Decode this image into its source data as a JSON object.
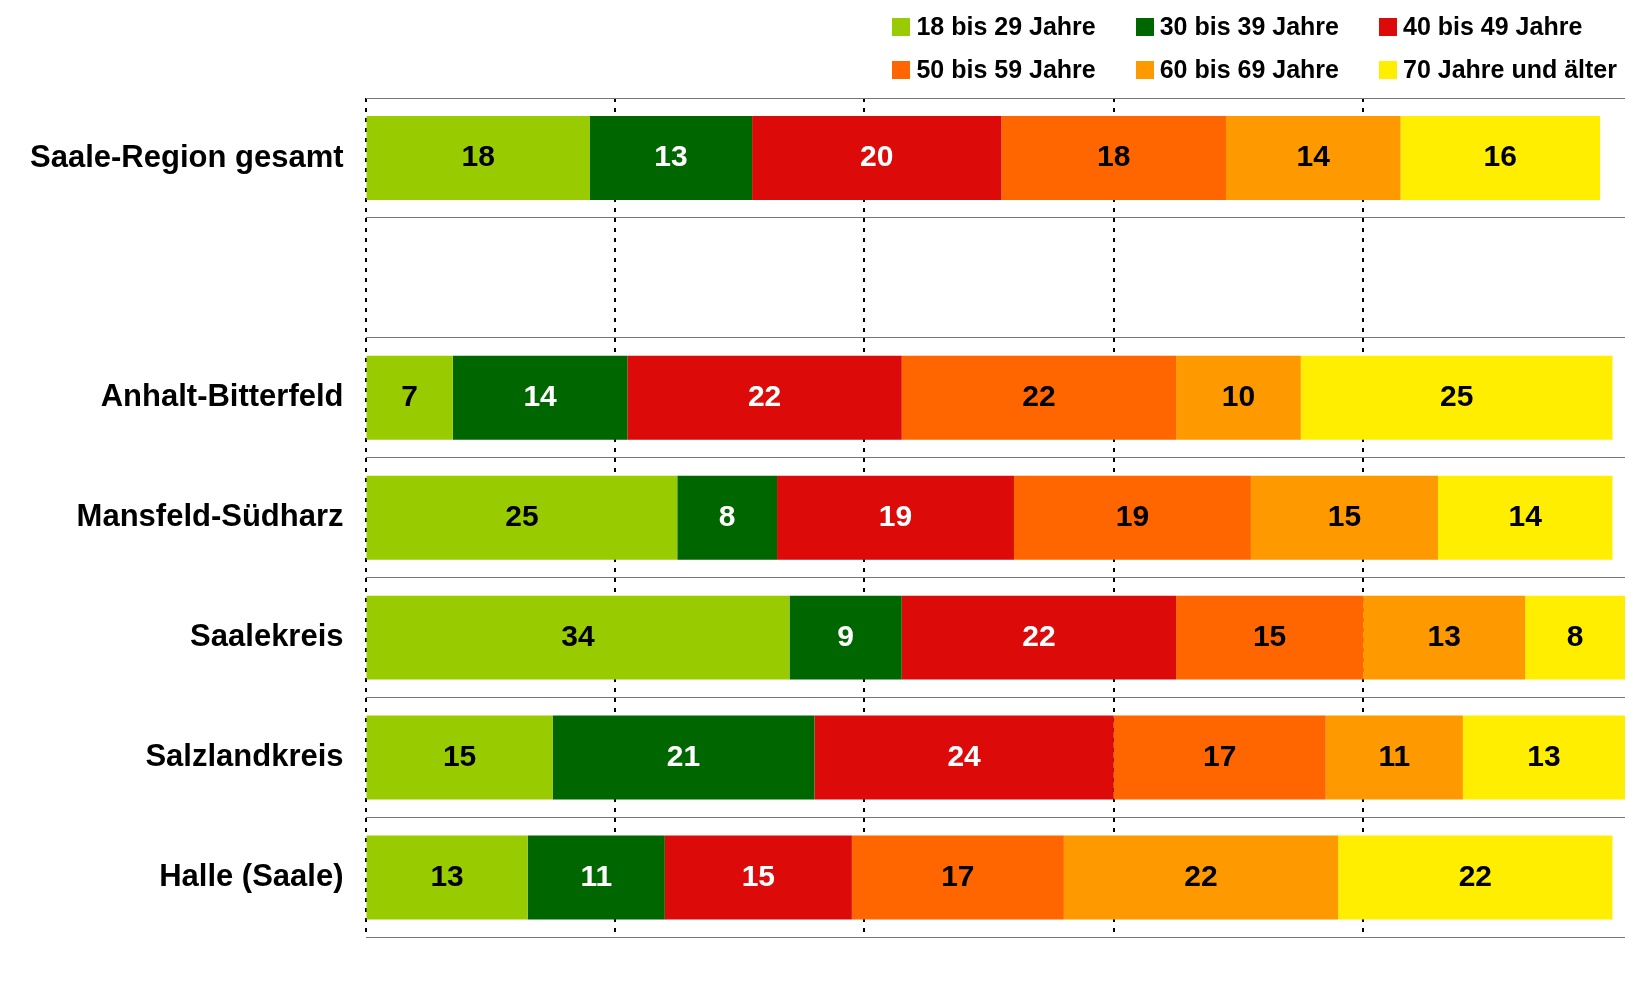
{
  "chart_data": {
    "type": "bar",
    "orientation": "horizontal",
    "stacked": true,
    "categories": [
      "Saale-Region gesamt",
      null,
      "Anhalt-Bitterfeld",
      "Mansfeld-Südharz",
      "Saalekreis",
      "Salzlandkreis",
      "Halle (Saale)"
    ],
    "series": [
      {
        "name": "18 bis 29 Jahre",
        "color": "#99cc00",
        "values": [
          18,
          null,
          7,
          25,
          34,
          15,
          13
        ]
      },
      {
        "name": "30 bis 39 Jahre",
        "color": "#006600",
        "values": [
          13,
          null,
          14,
          8,
          9,
          21,
          11
        ]
      },
      {
        "name": "40 bis 49 Jahre",
        "color": "#dd0a0a",
        "values": [
          20,
          null,
          22,
          19,
          22,
          24,
          15
        ]
      },
      {
        "name": "50 bis 59 Jahre",
        "color": "#ff6600",
        "values": [
          18,
          null,
          22,
          19,
          15,
          17,
          17
        ]
      },
      {
        "name": "60 bis 69 Jahre",
        "color": "#ff9900",
        "values": [
          14,
          null,
          10,
          15,
          13,
          11,
          22
        ]
      },
      {
        "name": "70 Jahre und älter",
        "color": "#ffee00",
        "values": [
          16,
          null,
          25,
          14,
          8,
          13,
          22
        ]
      }
    ],
    "xlim": [
      0,
      101
    ],
    "xticks": [
      {
        "value": 0,
        "label": null
      },
      {
        "value": 20,
        "label": null
      },
      {
        "value": 40,
        "label": null
      },
      {
        "value": 60,
        "label": null
      },
      {
        "value": 80,
        "label": null
      }
    ],
    "tick_labels": "y",
    "grid": true,
    "legend": "top right",
    "data_labels": true
  }
}
